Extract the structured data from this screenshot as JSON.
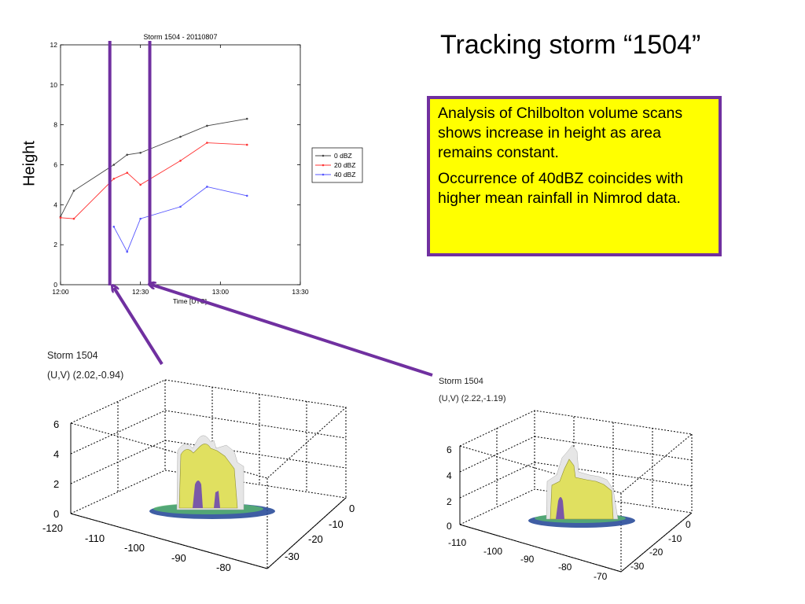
{
  "slide": {
    "title": "Tracking storm “1504”",
    "height_label": "Height",
    "callout": {
      "p1": "Analysis of Chilbolton volume scans shows increase in height as area remains constant.",
      "p2": "Occurrence of 40dBZ coincides with higher mean rainfall in Nimrod data."
    },
    "colors": {
      "accent": "#7030a0",
      "callout_bg": "#ffff00"
    }
  },
  "chart_data": {
    "type": "line",
    "title": "Storm 1504 - 20110807",
    "xlabel": "Time [UTC]",
    "ylabel": "",
    "xlim": [
      0,
      90
    ],
    "ylim": [
      0,
      12
    ],
    "x_tick_labels": [
      "12:00",
      "12:30",
      "13:00",
      "13:30"
    ],
    "y_tick_labels": [
      "0",
      "2",
      "4",
      "6",
      "8",
      "10",
      "12"
    ],
    "legend_position": "right",
    "series": [
      {
        "name": "0 dBZ",
        "color": "#444444",
        "x": [
          0,
          5,
          20,
          25,
          30,
          45,
          55,
          70
        ],
        "y": [
          3.4,
          4.7,
          6.0,
          6.5,
          6.6,
          7.4,
          7.95,
          8.3
        ]
      },
      {
        "name": "20 dBZ",
        "color": "#ff3333",
        "x": [
          0,
          5,
          20,
          25,
          30,
          45,
          55,
          70
        ],
        "y": [
          3.35,
          3.3,
          5.3,
          5.6,
          5.0,
          6.2,
          7.1,
          7.0
        ]
      },
      {
        "name": "40 dBZ",
        "color": "#5555ff",
        "x": [
          20,
          25,
          30,
          45,
          55,
          70
        ],
        "y": [
          2.9,
          1.65,
          3.3,
          3.9,
          4.9,
          4.45
        ]
      }
    ],
    "markers_x": [
      18.5,
      33.5
    ]
  },
  "panel_left": {
    "title": "Storm 1504",
    "subtitle": "(U,V) (2.02,-0.94)",
    "z_ticks": [
      "0",
      "2",
      "4",
      "6"
    ],
    "x_ticks": [
      "-120",
      "-110",
      "-100",
      "-90",
      "-80"
    ],
    "y_ticks": [
      "0",
      "-10",
      "-20",
      "-30"
    ]
  },
  "panel_right": {
    "title": "Storm 1504",
    "subtitle": "(U,V) (2.22,-1.19)",
    "z_ticks": [
      "0",
      "2",
      "4",
      "6"
    ],
    "x_ticks": [
      "-110",
      "-100",
      "-90",
      "-80",
      "-70"
    ],
    "y_ticks": [
      "0",
      "-10",
      "-20",
      "-30"
    ]
  }
}
